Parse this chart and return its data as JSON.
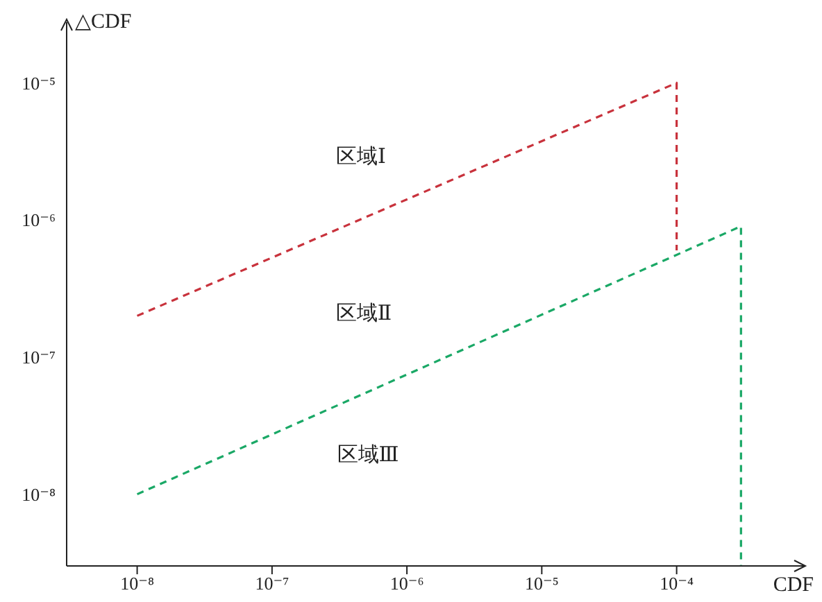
{
  "chart_data": {
    "type": "line",
    "xlabel": "CDF",
    "ylabel": "△CDF",
    "log": "xy",
    "line_style": "dashed",
    "marker": "none",
    "xlim": [
      3e-09,
      0.0009
    ],
    "ylim": [
      3e-09,
      2e-05
    ],
    "xticks": [
      {
        "value": 1e-08,
        "label": "10⁻⁸"
      },
      {
        "value": 1e-07,
        "label": "10⁻⁷"
      },
      {
        "value": 1e-06,
        "label": "10⁻⁶"
      },
      {
        "value": 1e-05,
        "label": "10⁻⁵"
      },
      {
        "value": 0.0001,
        "label": "10⁻⁴"
      }
    ],
    "yticks": [
      {
        "value": 1e-08,
        "label": "10⁻⁸"
      },
      {
        "value": 1e-07,
        "label": "10⁻⁷"
      },
      {
        "value": 1e-06,
        "label": "10⁻⁶"
      },
      {
        "value": 1e-05,
        "label": "10⁻⁵"
      }
    ],
    "series": [
      {
        "color": "#c8323c",
        "x": [
          1e-08,
          0.0001,
          0.0001
        ],
        "values": [
          2e-07,
          1e-05,
          6e-07
        ]
      },
      {
        "color": "#1aa866",
        "x": [
          1e-08,
          0.0003,
          0.0003
        ],
        "values": [
          1e-08,
          9e-07,
          3e-09
        ]
      }
    ],
    "annotations": [
      "区域Ⅰ",
      "区域Ⅱ",
      "区域Ⅲ"
    ]
  }
}
